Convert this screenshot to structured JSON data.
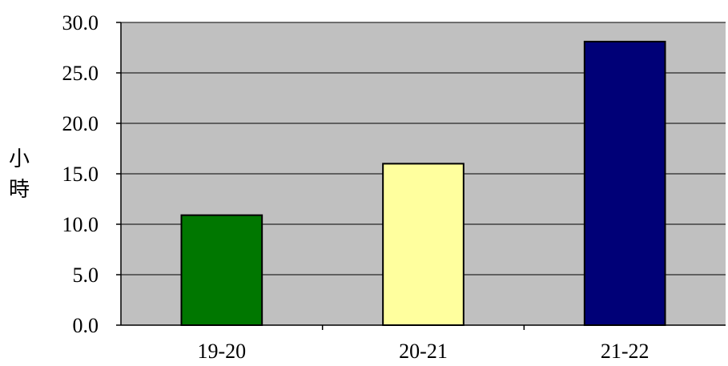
{
  "chart_data": {
    "type": "bar",
    "title": "",
    "xlabel": "",
    "ylabel": "小時",
    "categories": [
      "19-20",
      "20-21",
      "21-22"
    ],
    "values": [
      10.9,
      16.0,
      28.1
    ],
    "bar_colors": [
      "#007700",
      "#ffff9e",
      "#000077"
    ],
    "ylim": [
      0,
      30
    ],
    "ytick_step": 5,
    "ytick_labels": [
      "0.0",
      "5.0",
      "10.0",
      "15.0",
      "20.0",
      "25.0",
      "30.0"
    ],
    "grid": true,
    "plot_background": "#c0c0c0",
    "legend": "none"
  }
}
